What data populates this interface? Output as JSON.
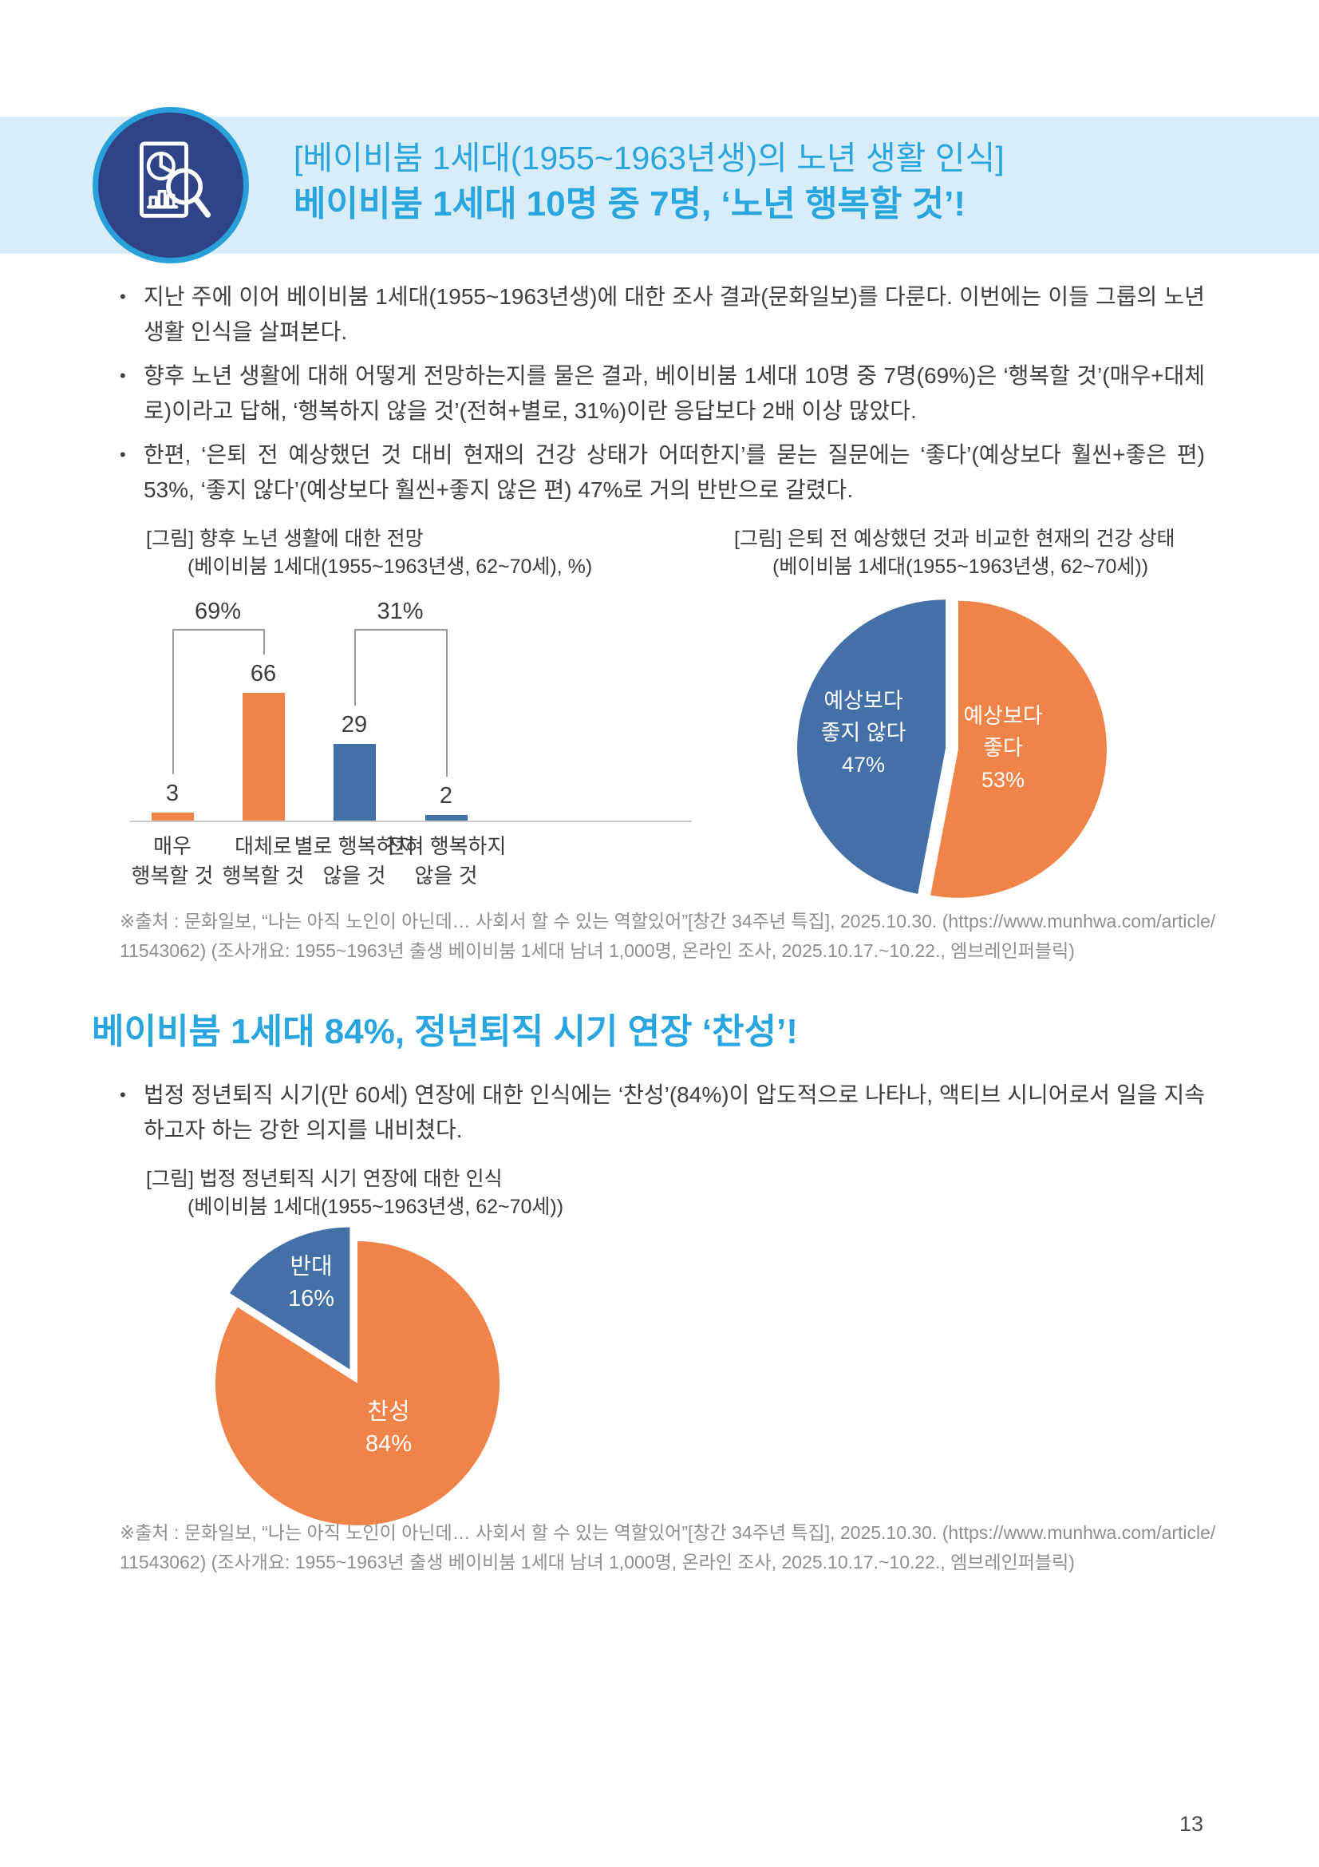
{
  "header": {
    "title_line1": "[베이비붐 1세대(1955~1963년생)의 노년 생활 인식]",
    "title_line2": "베이비붐 1세대 10명 중 7명, ‘노년 행복할 것’!",
    "icon": "document-chart-magnifier-icon"
  },
  "colors": {
    "accent_blue": "#29a5df",
    "band_blue": "#d8edf8",
    "navy": "#2e4487",
    "ring_blue": "#2aa0da",
    "orange": "#f08348",
    "chart_blue": "#4470a8",
    "source_gray": "#8f8f8f"
  },
  "bullets": [
    "지난 주에 이어 베이비붐 1세대(1955~1963년생)에 대한 조사 결과(문화일보)를 다룬다. 이번에는 이들 그룹의 노년 생활 인식을 살펴본다.",
    "향후 노년 생활에 대해 어떻게 전망하는지를 물은 결과, 베이비붐 1세대 10명 중 7명(69%)은 ‘행복할 것’(매우+대체로)이라고 답해, ‘행복하지 않을 것’(전혀+별로, 31%)이란 응답보다 2배 이상 많았다.",
    "한편, ‘은퇴 전 예상했던 것 대비 현재의 건강 상태가 어떠한지’를 묻는 질문에는 ‘좋다’(예상보다 훨씬+좋은 편) 53%, ‘좋지 않다’(예상보다 훨씬+좋지 않은 편) 47%로 거의 반반으로 갈렸다."
  ],
  "figure1": {
    "caption_line1": "[그림] 향후 노년 생활에 대한 전망",
    "caption_line2": "(베이비붐 1세대(1955~1963년생, 62~70세), %)"
  },
  "figure2": {
    "caption_line1": "[그림] 은퇴 전 예상했던 것과 비교한 현재의 건강 상태",
    "caption_line2": "(베이비붐 1세대(1955~1963년생, 62~70세))"
  },
  "figure3": {
    "caption_line1": "[그림] 법정 정년퇴직 시기 연장에 대한 인식",
    "caption_line2": "(베이비붐 1세대(1955~1963년생, 62~70세))"
  },
  "chart_data": [
    {
      "type": "bar",
      "title": "향후 노년 생활에 대한 전망",
      "unit": "%",
      "categories": [
        [
          "매우",
          "행복할 것"
        ],
        [
          "대체로",
          "행복할 것"
        ],
        [
          "별로 행복하지",
          "않을 것"
        ],
        [
          "전혀 행복하지",
          "않을 것"
        ]
      ],
      "values": [
        3,
        66,
        29,
        2
      ],
      "colors": [
        "#f08348",
        "#f08348",
        "#4470a8",
        "#4470a8"
      ],
      "brackets": [
        {
          "label": "69%",
          "from": 0,
          "to": 1
        },
        {
          "label": "31%",
          "from": 2,
          "to": 3
        }
      ],
      "ylim": [
        0,
        70
      ],
      "grid": false,
      "legend": "none"
    },
    {
      "type": "pie",
      "title": "은퇴 전 예상했던 것과 비교한 현재의 건강 상태",
      "slices": [
        {
          "label_lines": [
            "예상보다",
            "좋다",
            "53%"
          ],
          "value": 53,
          "color": "#f08348"
        },
        {
          "label_lines": [
            "예상보다",
            "좋지 않다",
            "47%"
          ],
          "value": 47,
          "color": "#4470a8"
        }
      ]
    },
    {
      "type": "pie",
      "title": "법정 정년퇴직 시기 연장에 대한 인식",
      "slices": [
        {
          "label_lines": [
            "찬성",
            "84%"
          ],
          "value": 84,
          "color": "#f08348"
        },
        {
          "label_lines": [
            "반대",
            "16%"
          ],
          "value": 16,
          "color": "#4470a8"
        }
      ]
    }
  ],
  "source1": {
    "line1": "※출처 : 문화일보, “나는 아직 노인이 아닌데… 사회서 할 수 있는 역할있어”[창간 34주년 특집], 2025.10.30. (https://www.munhwa.com/article/",
    "line2": "11543062) (조사개요: 1955~1963년 출생 베이비붐 1세대 남녀 1,000명, 온라인 조사, 2025.10.17.~10.22., 엠브레인퍼블릭)"
  },
  "section2": {
    "title": "베이비붐 1세대 84%, 정년퇴직 시기 연장 ‘찬성’!",
    "bullet": "법정 정년퇴직 시기(만 60세) 연장에 대한 인식에는 ‘찬성’(84%)이 압도적으로 나타나, 액티브 시니어로서 일을 지속하고자 하는 강한 의지를 내비쳤다."
  },
  "source2": {
    "line1": "※출처 : 문화일보, “나는 아직 노인이 아닌데… 사회서 할 수 있는 역할있어”[창간 34주년 특집], 2025.10.30. (https://www.munhwa.com/article/",
    "line2": "11543062) (조사개요: 1955~1963년 출생 베이비붐 1세대 남녀 1,000명, 온라인 조사, 2025.10.17.~10.22., 엠브레인퍼블릭)"
  },
  "page_number": "13"
}
